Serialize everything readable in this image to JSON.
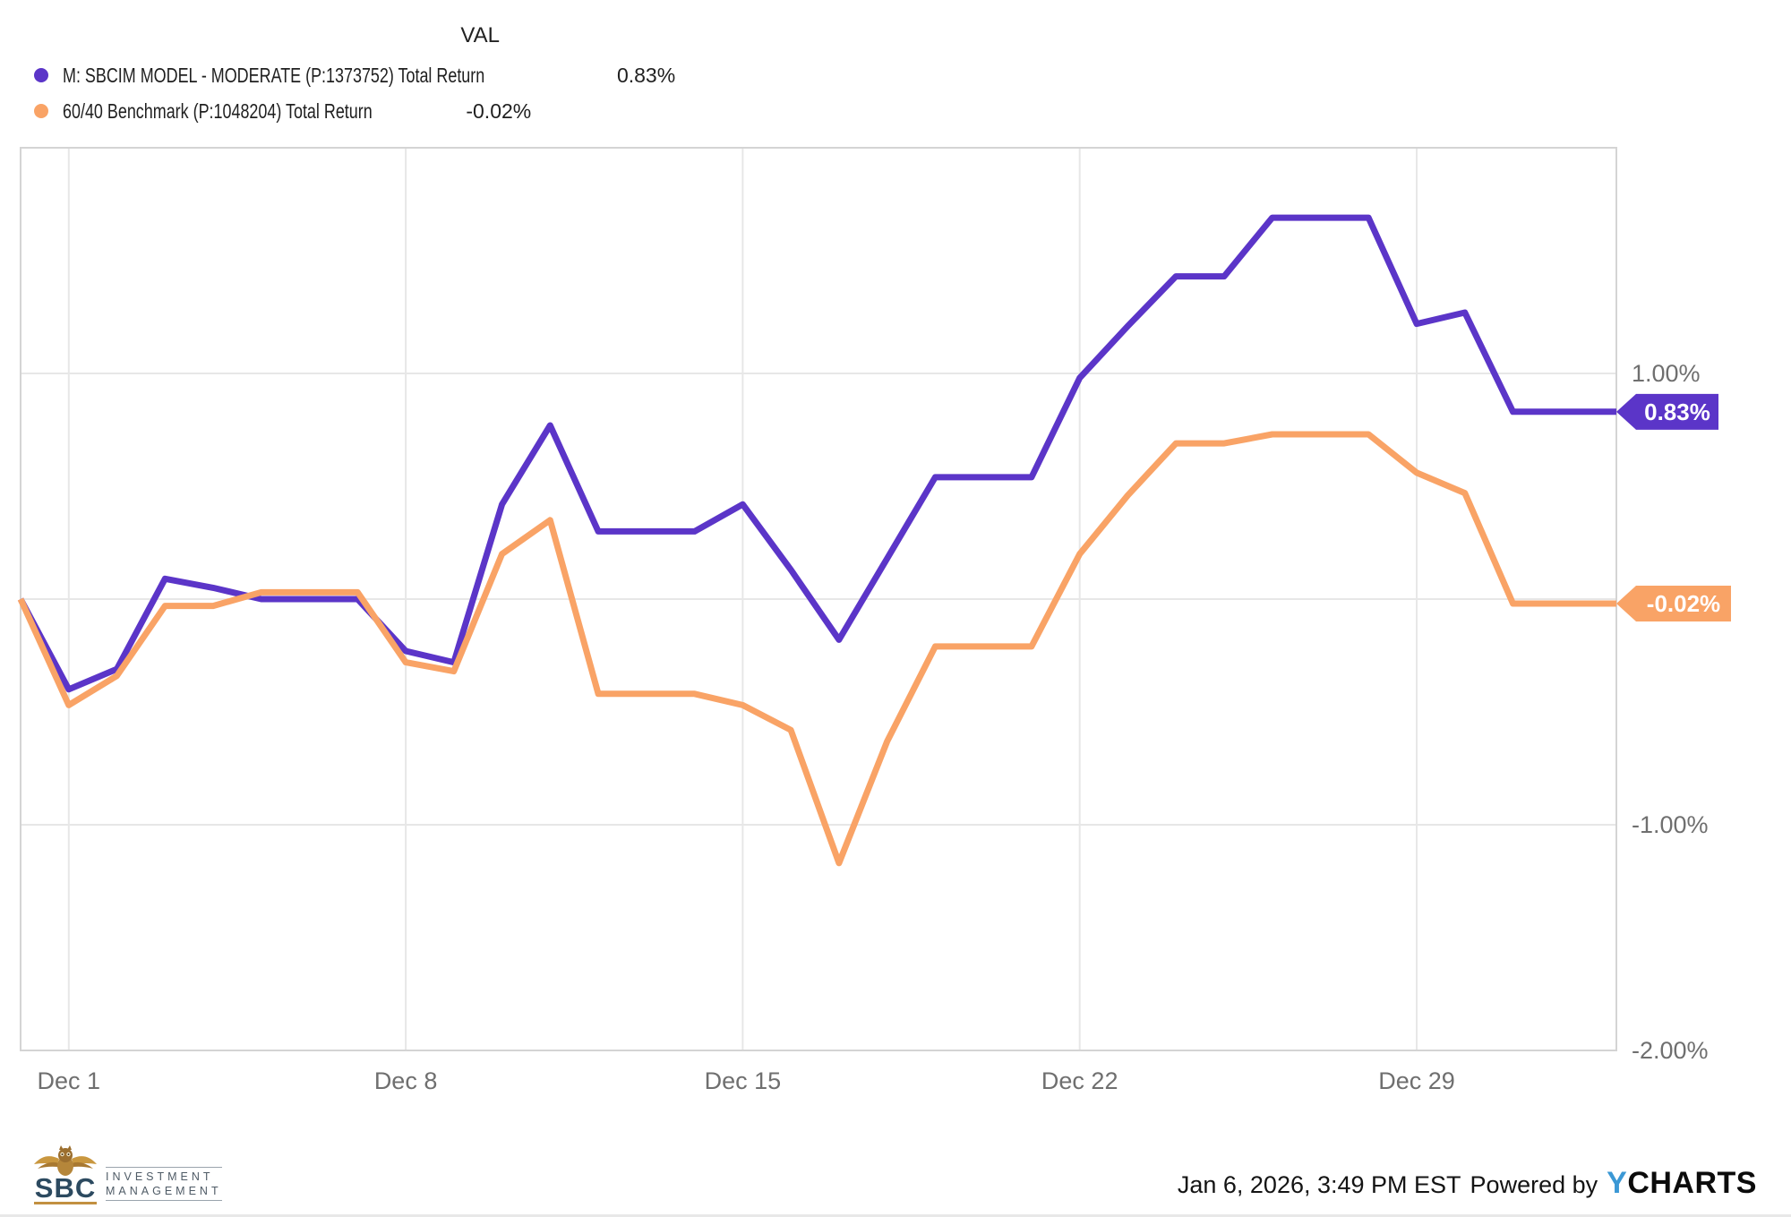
{
  "legend": {
    "val_header": "VAL",
    "series": [
      {
        "label": "M: SBCIM MODEL - MODERATE (P:1373752) Total Return",
        "value": "0.83%"
      },
      {
        "label": "60/40 Benchmark (P:1048204) Total Return",
        "value": "-0.02%"
      }
    ]
  },
  "chart_data": {
    "type": "line",
    "title": "",
    "x": [
      "Nov 30",
      "Dec 1",
      "Dec 2",
      "Dec 3",
      "Dec 4",
      "Dec 5",
      "Dec 6",
      "Dec 7",
      "Dec 8",
      "Dec 9",
      "Dec 10",
      "Dec 11",
      "Dec 12",
      "Dec 13",
      "Dec 14",
      "Dec 15",
      "Dec 16",
      "Dec 17",
      "Dec 18",
      "Dec 19",
      "Dec 20",
      "Dec 21",
      "Dec 22",
      "Dec 23",
      "Dec 24",
      "Dec 25",
      "Dec 26",
      "Dec 27",
      "Dec 28",
      "Dec 29",
      "Dec 30",
      "Dec 31"
    ],
    "series": [
      {
        "name": "M: SBCIM MODEL - MODERATE (P:1373752) Total Return",
        "color": "#5B35C8",
        "end_label": "0.83%",
        "values": [
          0.0,
          -0.4,
          -0.31,
          0.09,
          0.05,
          0.0,
          0.0,
          0.0,
          -0.23,
          -0.28,
          0.42,
          0.77,
          0.3,
          0.3,
          0.3,
          0.42,
          0.13,
          -0.18,
          0.18,
          0.54,
          0.54,
          0.54,
          0.98,
          1.21,
          1.43,
          1.43,
          1.69,
          1.69,
          1.69,
          1.22,
          1.27,
          0.83
        ]
      },
      {
        "name": "60/40 Benchmark (P:1048204) Total Return",
        "color": "#F9A366",
        "end_label": "-0.02%",
        "values": [
          0.0,
          -0.47,
          -0.34,
          -0.03,
          -0.03,
          0.03,
          0.03,
          0.03,
          -0.28,
          -0.32,
          0.2,
          0.35,
          -0.42,
          -0.42,
          -0.42,
          -0.47,
          -0.58,
          -1.17,
          -0.63,
          -0.21,
          -0.21,
          -0.21,
          0.2,
          0.46,
          0.69,
          0.69,
          0.73,
          0.73,
          0.73,
          0.56,
          0.47,
          -0.02
        ]
      }
    ],
    "x_tick_labels": [
      "Dec 1",
      "Dec 8",
      "Dec 15",
      "Dec 22",
      "Dec 29"
    ],
    "y_tick_labels": [
      "1.00%",
      "0.00%",
      "-1.00%",
      "-2.00%"
    ],
    "y_ticks": [
      1,
      0,
      -1,
      -2
    ],
    "ylim": [
      -2,
      2
    ],
    "grid": true,
    "legend_position": "top-left",
    "ylabel": "",
    "xlabel": ""
  },
  "footer": {
    "logo": {
      "text": "SBC",
      "line1": "INVESTMENT",
      "line2": "MANAGEMENT"
    },
    "timestamp": "Jan 6, 2026, 3:49 PM EST",
    "powered_by": "Powered by",
    "brand": {
      "y": "Y",
      "charts": "CHARTS"
    }
  },
  "colors": {
    "series_purple": "#5B35C8",
    "series_orange": "#F9A366",
    "grid": "#E7E7E7",
    "border": "#D4D4D4",
    "axis_text": "#6F6F6F",
    "legend_text": "#1F1F1F",
    "badge_text": "#FFFFFF",
    "ycharts_blue": "#3B98D5",
    "logo_navy": "#2C4A60",
    "logo_gold": "#C29040"
  }
}
